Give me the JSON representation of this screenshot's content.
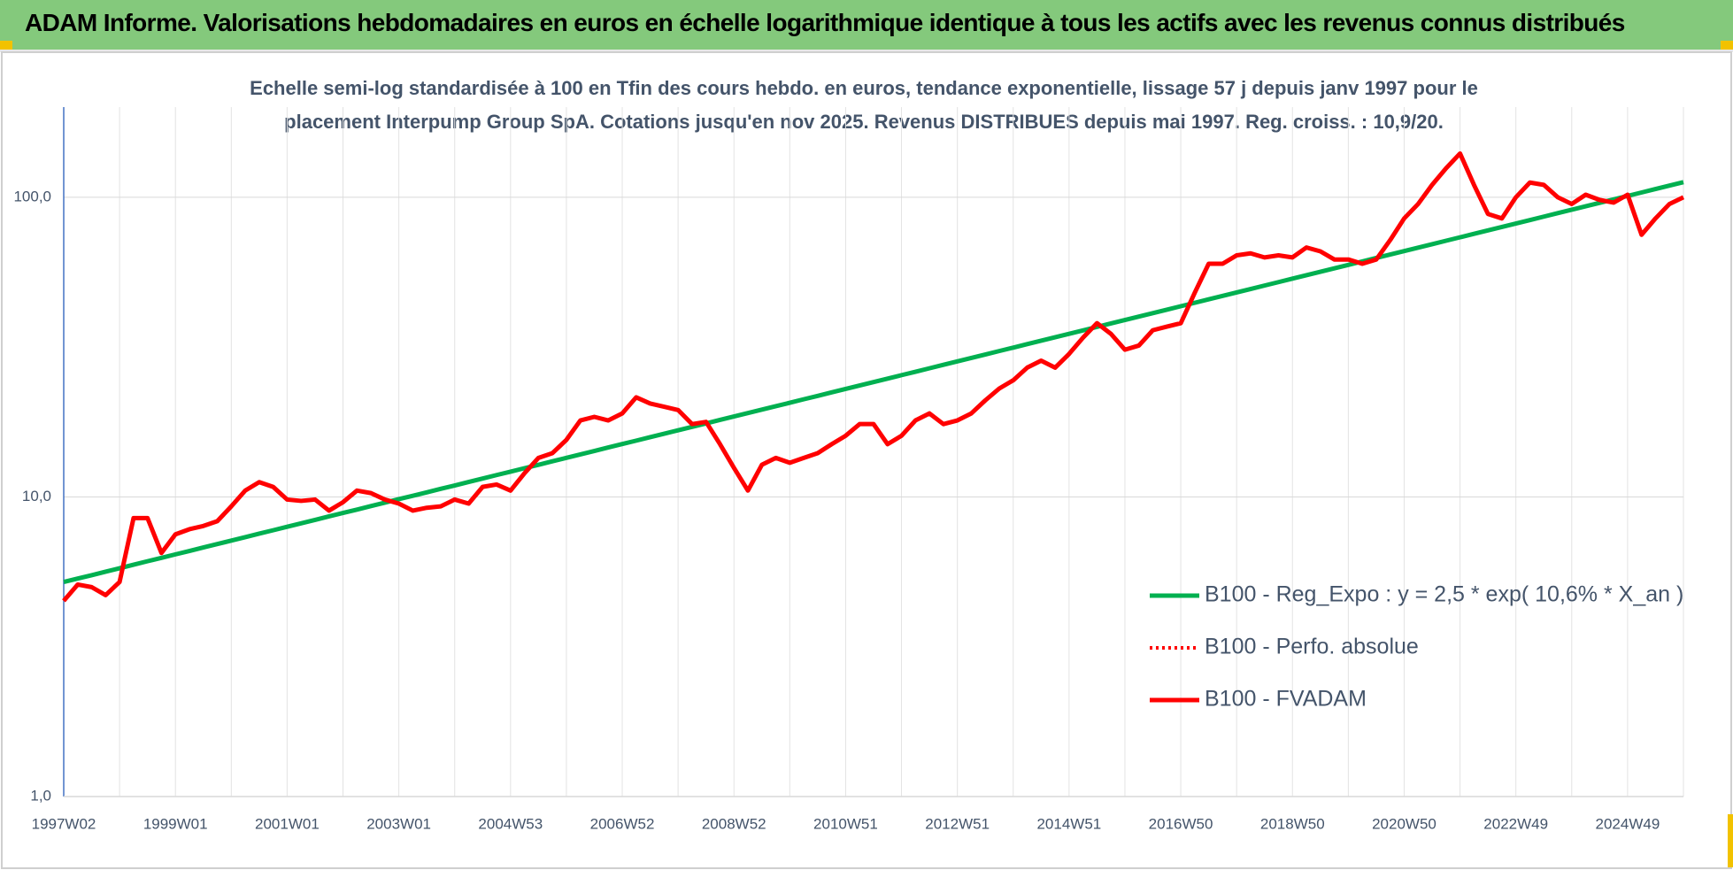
{
  "chart_data": {
    "type": "line",
    "title": "ADAM Informe. Valorisations hebdomadaires en euros en échelle logarithmique identique à tous les actifs avec les revenus connus distribués",
    "subtitle": [
      "Echelle semi-log standardisée à 100 en Tfin des cours hebdo. en euros, tendance exponentielle, lissage 57 j depuis janv 1997 pour le",
      "placement Interpump Group SpA.  Cotations jusqu'en nov 2025.  Revenus DISTRIBUES depuis mai 1997.  Reg. croiss. : 10,9/20."
    ],
    "log_scale": true,
    "grid": true,
    "legend": "right",
    "ylim": [
      1,
      200
    ],
    "yticks": [
      {
        "value": 1,
        "label": "1,0"
      },
      {
        "value": 10,
        "label": "10,0"
      },
      {
        "value": 100,
        "label": "100,0"
      }
    ],
    "categories": [
      "1997W02",
      null,
      null,
      null,
      null,
      null,
      null,
      null,
      "1999W01",
      null,
      null,
      null,
      null,
      null,
      null,
      null,
      "2001W01",
      null,
      null,
      null,
      null,
      null,
      null,
      null,
      "2003W01",
      null,
      null,
      null,
      null,
      null,
      null,
      null,
      "2004W53",
      null,
      null,
      null,
      null,
      null,
      null,
      null,
      "2006W52",
      null,
      null,
      null,
      null,
      null,
      null,
      null,
      "2008W52",
      null,
      null,
      null,
      null,
      null,
      null,
      null,
      "2010W51",
      null,
      null,
      null,
      null,
      null,
      null,
      null,
      "2012W51",
      null,
      null,
      null,
      null,
      null,
      null,
      null,
      "2014W51",
      null,
      null,
      null,
      null,
      null,
      null,
      null,
      "2016W50",
      null,
      null,
      null,
      null,
      null,
      null,
      null,
      "2018W50",
      null,
      null,
      null,
      null,
      null,
      null,
      null,
      "2020W50",
      null,
      null,
      null,
      null,
      null,
      null,
      null,
      "2022W49",
      null,
      null,
      null,
      null,
      null,
      null,
      null,
      "2024W49",
      null,
      null,
      null,
      null
    ],
    "series": [
      {
        "name": "B100 - Reg_Expo : y = 2,5 * exp( 10,6% *  X_an )",
        "color": "#00b050",
        "style": "solid",
        "values": [
          5.2,
          5.34,
          5.48,
          5.63,
          5.78,
          5.94,
          6.1,
          6.26,
          6.43,
          6.6,
          6.78,
          6.96,
          7.15,
          7.34,
          7.54,
          7.74,
          7.95,
          8.16,
          8.38,
          8.61,
          8.84,
          9.07,
          9.32,
          9.57,
          9.83,
          10.09,
          10.36,
          10.64,
          10.92,
          11.22,
          11.52,
          11.83,
          12.14,
          12.47,
          12.8,
          13.15,
          13.5,
          13.86,
          14.23,
          14.62,
          15.01,
          15.41,
          15.83,
          16.25,
          16.69,
          17.13,
          17.59,
          18.07,
          18.55,
          19.05,
          19.56,
          20.08,
          20.62,
          21.18,
          21.74,
          22.33,
          22.93,
          23.54,
          24.17,
          24.82,
          25.49,
          26.17,
          26.87,
          27.6,
          28.34,
          29.1,
          29.88,
          30.68,
          31.5,
          32.35,
          33.22,
          34.11,
          35.02,
          35.96,
          36.93,
          37.92,
          38.94,
          39.98,
          41.06,
          42.16,
          43.29,
          44.45,
          45.65,
          46.87,
          48.13,
          49.42,
          50.75,
          52.11,
          53.51,
          54.95,
          56.42,
          57.94,
          59.49,
          61.09,
          62.73,
          64.41,
          66.14,
          67.92,
          69.74,
          71.61,
          73.53,
          75.51,
          77.53,
          79.61,
          81.75,
          83.94,
          86.2,
          88.51,
          90.89,
          93.33,
          95.83,
          98.4,
          101.05,
          103.76,
          106.54,
          109.4,
          112.34
        ]
      },
      {
        "name": "B100 - Perfo. absolue",
        "color": "#ff0000",
        "style": "dotted",
        "values": [
          4.5,
          5.1,
          5.0,
          4.7,
          5.2,
          8.5,
          8.5,
          6.5,
          7.5,
          7.8,
          8.0,
          8.3,
          9.3,
          10.5,
          11.2,
          10.8,
          9.8,
          9.7,
          9.8,
          9.0,
          9.6,
          10.5,
          10.3,
          9.8,
          9.5,
          9.0,
          9.2,
          9.3,
          9.8,
          9.5,
          10.8,
          11.0,
          10.5,
          12.0,
          13.5,
          14.0,
          15.5,
          18.0,
          18.5,
          18.0,
          19.0,
          21.5,
          20.5,
          20.0,
          19.5,
          17.5,
          17.8,
          15.0,
          12.5,
          10.5,
          12.8,
          13.5,
          13.0,
          13.5,
          14.0,
          15.0,
          16.0,
          17.5,
          17.5,
          15.0,
          16.0,
          18.0,
          19.0,
          17.5,
          18.0,
          19.0,
          21.0,
          23.0,
          24.5,
          27.0,
          28.5,
          27.0,
          30.0,
          34.0,
          38.0,
          35.0,
          31.0,
          32.0,
          36.0,
          37.0,
          38.0,
          48.0,
          60.0,
          60.0,
          64.0,
          65.0,
          63.0,
          64.0,
          63.0,
          68.0,
          66.0,
          62.0,
          62.0,
          60.0,
          62.0,
          72.0,
          85.0,
          95.0,
          110.0,
          125.0,
          140.0,
          110.0,
          88.0,
          85.0,
          100.0,
          112.0,
          110.0,
          100.0,
          95.0,
          102.0,
          98.0,
          96.0,
          102.0,
          75.0,
          85.0,
          95.0,
          100.0
        ]
      },
      {
        "name": "B100 - FVADAM",
        "color": "#ff0000",
        "style": "solid",
        "values": [
          4.5,
          5.1,
          5.0,
          4.7,
          5.2,
          8.5,
          8.5,
          6.5,
          7.5,
          7.8,
          8.0,
          8.3,
          9.3,
          10.5,
          11.2,
          10.8,
          9.8,
          9.7,
          9.8,
          9.0,
          9.6,
          10.5,
          10.3,
          9.8,
          9.5,
          9.0,
          9.2,
          9.3,
          9.8,
          9.5,
          10.8,
          11.0,
          10.5,
          12.0,
          13.5,
          14.0,
          15.5,
          18.0,
          18.5,
          18.0,
          19.0,
          21.5,
          20.5,
          20.0,
          19.5,
          17.5,
          17.8,
          15.0,
          12.5,
          10.5,
          12.8,
          13.5,
          13.0,
          13.5,
          14.0,
          15.0,
          16.0,
          17.5,
          17.5,
          15.0,
          16.0,
          18.0,
          19.0,
          17.5,
          18.0,
          19.0,
          21.0,
          23.0,
          24.5,
          27.0,
          28.5,
          27.0,
          30.0,
          34.0,
          38.0,
          35.0,
          31.0,
          32.0,
          36.0,
          37.0,
          38.0,
          48.0,
          60.0,
          60.0,
          64.0,
          65.0,
          63.0,
          64.0,
          63.0,
          68.0,
          66.0,
          62.0,
          62.0,
          60.0,
          62.0,
          72.0,
          85.0,
          95.0,
          110.0,
          125.0,
          140.0,
          110.0,
          88.0,
          85.0,
          100.0,
          112.0,
          110.0,
          100.0,
          95.0,
          102.0,
          98.0,
          96.0,
          102.0,
          75.0,
          85.0,
          95.0,
          100.0
        ]
      }
    ]
  }
}
